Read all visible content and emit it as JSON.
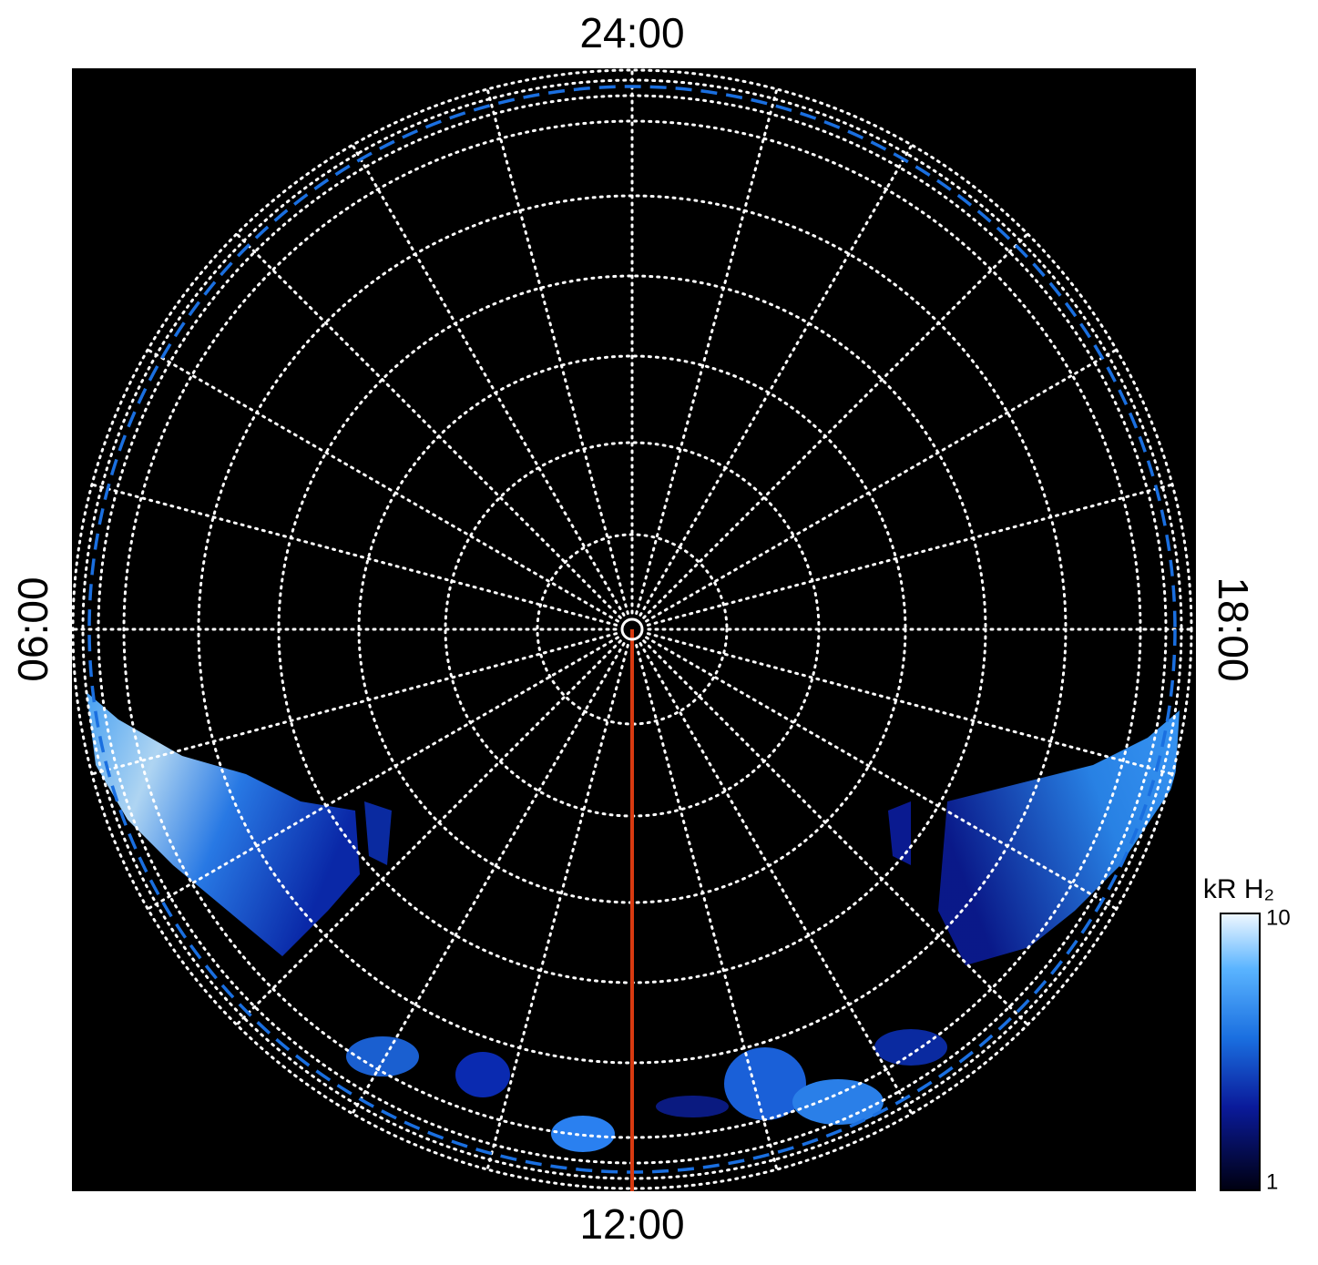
{
  "chart_data": {
    "type": "polar-image",
    "labels": {
      "top": "24:00",
      "bottom": "12:00",
      "left": "06:00",
      "right": "18:00"
    },
    "colorbar": {
      "label": "kR H₂",
      "scale": "log",
      "lim": [
        1,
        10
      ],
      "ticks": [
        1,
        10
      ]
    }
  }
}
